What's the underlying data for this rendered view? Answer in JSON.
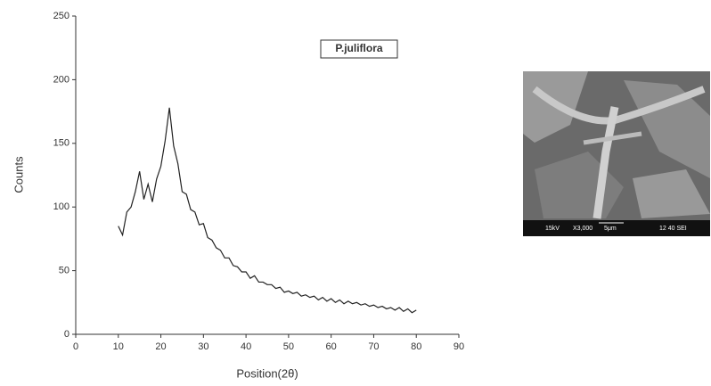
{
  "chart_data": {
    "type": "line",
    "xlabel": "Position(2θ)",
    "ylabel": "Counts",
    "x": [
      10,
      11,
      12,
      13,
      14,
      15,
      16,
      17,
      18,
      19,
      20,
      21,
      22,
      23,
      24,
      25,
      26,
      27,
      28,
      29,
      30,
      31,
      32,
      33,
      34,
      35,
      36,
      37,
      38,
      39,
      40,
      41,
      42,
      43,
      44,
      45,
      46,
      47,
      48,
      49,
      50,
      51,
      52,
      53,
      54,
      55,
      56,
      57,
      58,
      59,
      60,
      61,
      62,
      63,
      64,
      65,
      66,
      67,
      68,
      69,
      70,
      71,
      72,
      73,
      74,
      75,
      76,
      77,
      78,
      79,
      80
    ],
    "series": [
      {
        "name": "P.juliflora",
        "color": "#222222",
        "values": [
          85,
          78,
          96,
          100,
          112,
          128,
          106,
          118,
          104,
          122,
          132,
          152,
          178,
          148,
          134,
          112,
          110,
          98,
          96,
          86,
          87,
          76,
          74,
          68,
          66,
          60,
          60,
          54,
          53,
          49,
          49,
          44,
          46,
          41,
          41,
          39,
          39,
          36,
          37,
          33,
          34,
          32,
          33,
          30,
          31,
          29,
          30,
          27,
          29,
          26,
          28,
          25,
          27,
          24,
          26,
          24,
          25,
          23,
          24,
          22,
          23,
          21,
          22,
          20,
          21,
          19,
          21,
          18,
          20,
          17,
          19
        ]
      }
    ],
    "xlim": [
      0,
      90
    ],
    "xticks": [
      0,
      10,
      20,
      30,
      40,
      50,
      60,
      70,
      80,
      90
    ],
    "ylim": [
      0,
      250
    ],
    "yticks": [
      0,
      50,
      100,
      150,
      200,
      250
    ],
    "legend": "upper right"
  },
  "sem_image": {
    "labels": [
      "15kV",
      "X3,000",
      "5μm",
      "12 40 SEI"
    ]
  }
}
